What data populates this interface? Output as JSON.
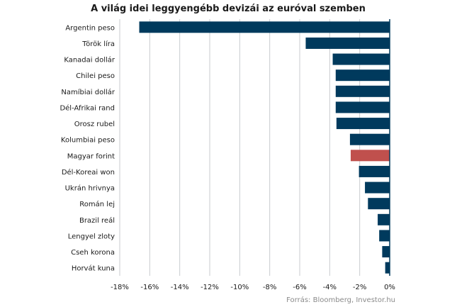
{
  "chart_data": {
    "type": "bar",
    "orientation": "horizontal",
    "title": "A világ idei leggyengébb devizái az euróval szemben",
    "categories": [
      "Argentin peso",
      "Török líra",
      "Kanadai dollár",
      "Chilei peso",
      "Namíbiai dollár",
      "Dél-Afrikai rand",
      "Orosz rubel",
      "Kolumbiai peso",
      "Magyar forint",
      "Dél-Koreai won",
      "Ukrán hrivnya",
      "Román lej",
      "Brazil reál",
      "Lengyel zloty",
      "Cseh korona",
      "Horvát kuna"
    ],
    "values": [
      -16.7,
      -5.6,
      -3.8,
      -3.6,
      -3.6,
      -3.6,
      -3.55,
      -2.65,
      -2.6,
      -2.05,
      -1.65,
      -1.45,
      -0.8,
      -0.7,
      -0.5,
      -0.3
    ],
    "highlight_category": "Magyar forint",
    "x_ticks": [
      "-18%",
      "-16%",
      "-14%",
      "-12%",
      "-10%",
      "-8%",
      "-6%",
      "-4%",
      "-2%",
      "0%"
    ],
    "xlim": [
      -18,
      0
    ],
    "grid": true,
    "colors": {
      "bar": "#003a5d",
      "highlight": "#c0504d",
      "grid": "#c8cbcf",
      "axis": "#003a5d"
    },
    "source": "Forrás: Bloomberg, Investor.hu"
  }
}
